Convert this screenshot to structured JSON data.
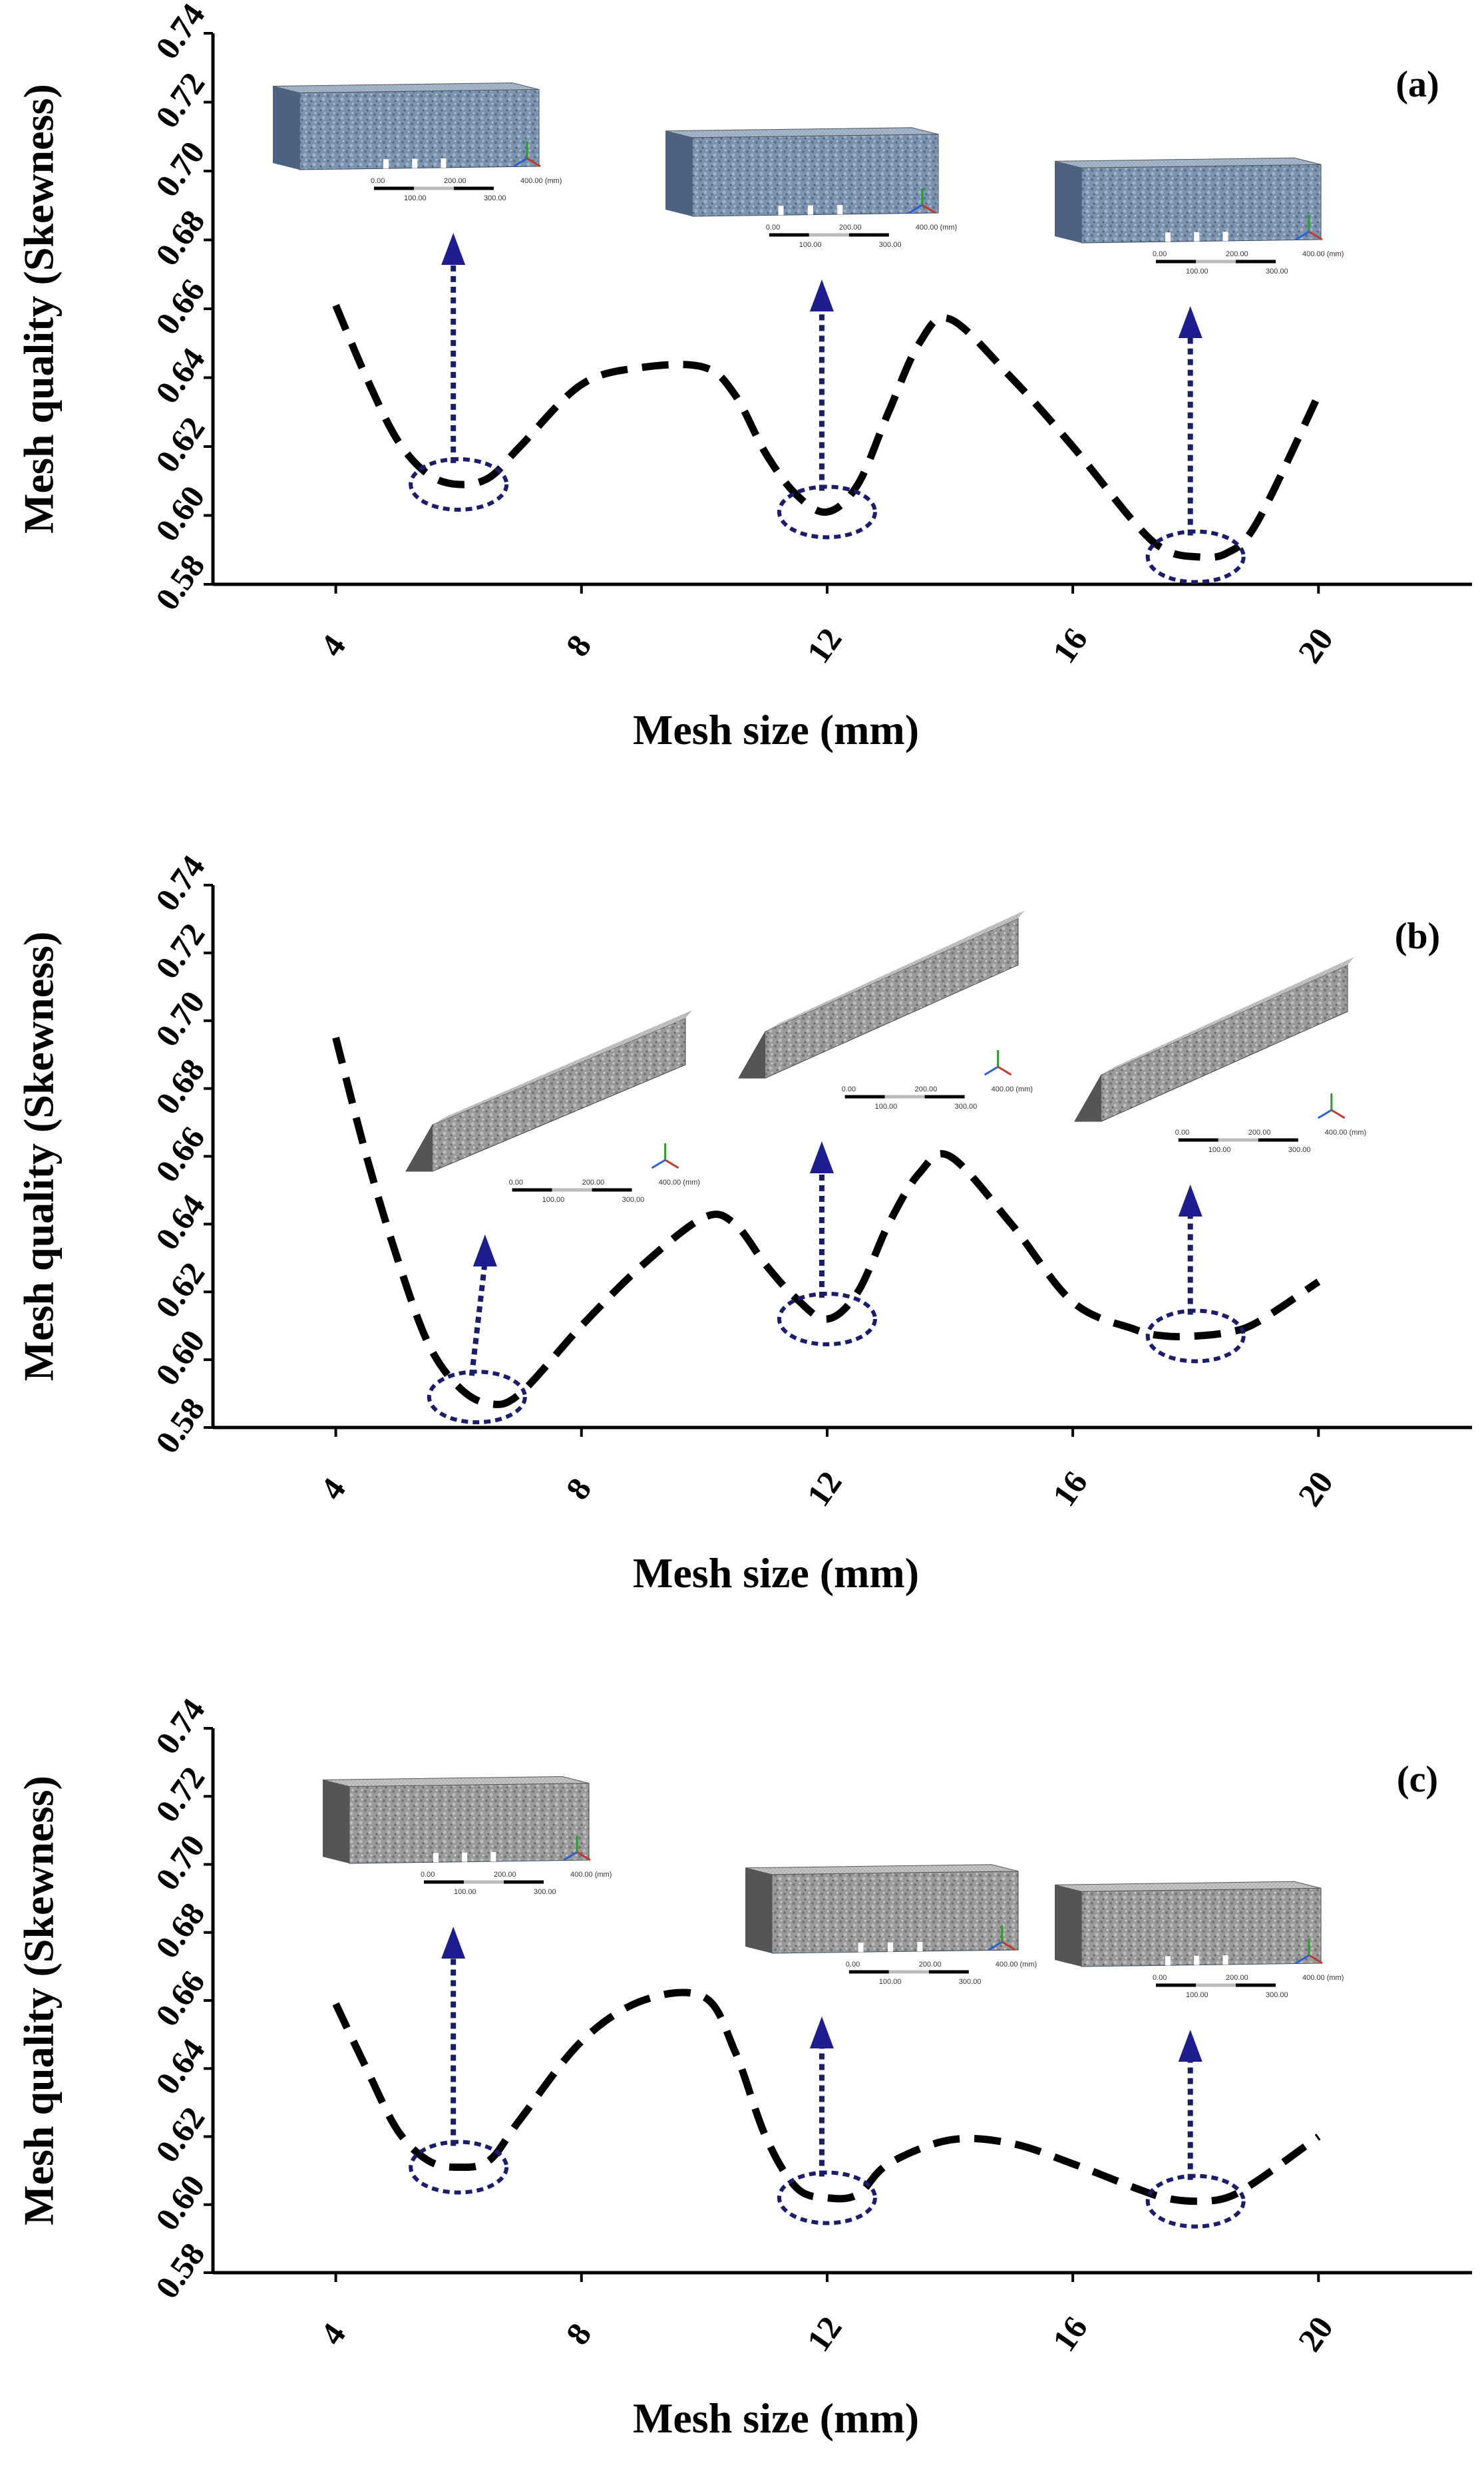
{
  "chart_data": [
    {
      "type": "line",
      "panel_label": "(a)",
      "xlabel": "Mesh size (mm)",
      "ylabel": "Mesh quality (Skewness)",
      "xlim": [
        2,
        22.5
      ],
      "ylim": [
        0.58,
        0.74
      ],
      "xticks": [
        4,
        8,
        12,
        16,
        20
      ],
      "xtick_labels": [
        "4",
        "8",
        "12",
        "16",
        "20"
      ],
      "yticks": [
        0.58,
        0.6,
        0.62,
        0.64,
        0.66,
        0.68,
        0.7,
        0.72,
        0.74
      ],
      "ytick_labels": [
        "0.58",
        "0.60",
        "0.62",
        "0.64",
        "0.66",
        "0.68",
        "0.70",
        "0.72",
        "0.74"
      ],
      "grid": false,
      "series": [
        {
          "x": [
            4,
            4.5,
            5,
            5.5,
            6,
            6.5,
            7,
            8,
            9,
            10,
            10.5,
            11,
            11.5,
            12,
            12.5,
            13,
            13.5,
            14,
            15,
            16,
            17,
            17.5,
            18,
            18.5,
            19,
            20
          ],
          "values": [
            0.661,
            0.64,
            0.622,
            0.612,
            0.609,
            0.611,
            0.62,
            0.638,
            0.643,
            0.643,
            0.635,
            0.618,
            0.606,
            0.601,
            0.609,
            0.63,
            0.65,
            0.657,
            0.64,
            0.62,
            0.598,
            0.59,
            0.588,
            0.589,
            0.598,
            0.635
          ]
        }
      ],
      "highlighted_x": [
        6,
        12,
        18
      ]
    },
    {
      "type": "line",
      "panel_label": "(b)",
      "xlabel": "Mesh size (mm)",
      "ylabel": "Mesh quality (Skewness)",
      "xlim": [
        2,
        22.5
      ],
      "ylim": [
        0.58,
        0.74
      ],
      "xticks": [
        4,
        8,
        12,
        16,
        20
      ],
      "xtick_labels": [
        "4",
        "8",
        "12",
        "16",
        "20"
      ],
      "yticks": [
        0.58,
        0.6,
        0.62,
        0.64,
        0.66,
        0.68,
        0.7,
        0.72,
        0.74
      ],
      "ytick_labels": [
        "0.58",
        "0.60",
        "0.62",
        "0.64",
        "0.66",
        "0.68",
        "0.70",
        "0.72",
        "0.74"
      ],
      "grid": false,
      "series": [
        {
          "x": [
            4,
            4.5,
            5,
            5.5,
            6,
            6.5,
            7,
            8,
            9,
            10,
            10.5,
            11,
            11.5,
            12,
            12.5,
            13,
            13.5,
            14,
            15,
            16,
            17,
            17.5,
            18,
            18.5,
            19,
            20
          ],
          "values": [
            0.695,
            0.66,
            0.63,
            0.605,
            0.592,
            0.587,
            0.59,
            0.61,
            0.628,
            0.642,
            0.64,
            0.628,
            0.618,
            0.612,
            0.62,
            0.64,
            0.655,
            0.66,
            0.64,
            0.617,
            0.609,
            0.607,
            0.607,
            0.608,
            0.611,
            0.623
          ]
        }
      ],
      "highlighted_x": [
        6.3,
        12,
        18
      ]
    },
    {
      "type": "line",
      "panel_label": "(c)",
      "xlabel": "Mesh size (mm)",
      "ylabel": "Mesh quality (Skewness)",
      "xlim": [
        2,
        22.5
      ],
      "ylim": [
        0.58,
        0.74
      ],
      "xticks": [
        4,
        8,
        12,
        16,
        20
      ],
      "xtick_labels": [
        "4",
        "8",
        "12",
        "16",
        "20"
      ],
      "yticks": [
        0.58,
        0.6,
        0.62,
        0.64,
        0.66,
        0.68,
        0.7,
        0.72,
        0.74
      ],
      "ytick_labels": [
        "0.58",
        "0.60",
        "0.62",
        "0.64",
        "0.66",
        "0.68",
        "0.70",
        "0.72",
        "0.74"
      ],
      "grid": false,
      "series": [
        {
          "x": [
            4,
            4.5,
            5,
            5.5,
            6,
            6.5,
            7,
            8,
            9,
            10,
            10.5,
            11,
            11.5,
            12,
            12.5,
            13,
            14,
            15,
            16,
            17,
            17.5,
            18,
            18.5,
            19,
            20
          ],
          "values": [
            0.659,
            0.64,
            0.622,
            0.613,
            0.611,
            0.613,
            0.625,
            0.648,
            0.66,
            0.661,
            0.645,
            0.62,
            0.605,
            0.602,
            0.603,
            0.612,
            0.619,
            0.618,
            0.612,
            0.605,
            0.602,
            0.601,
            0.602,
            0.607,
            0.62
          ]
        }
      ],
      "highlighted_x": [
        6,
        12,
        18
      ]
    }
  ],
  "inset_scale_labels": [
    "0.00",
    "100.00",
    "200.00",
    "300.00",
    "400.00 (mm)"
  ],
  "colors": {
    "line": "#000000",
    "highlight": "#1b1d6b",
    "arrow": "#1d1d8f",
    "beam_top_a": "#a9b9cc",
    "beam_side_a": "#6f86a3",
    "beam_top_gray": "#c9c9c9",
    "beam_side_gray": "#8a8a8a"
  },
  "icons": [
    "arrow-up-icon",
    "axis-triad-icon"
  ]
}
